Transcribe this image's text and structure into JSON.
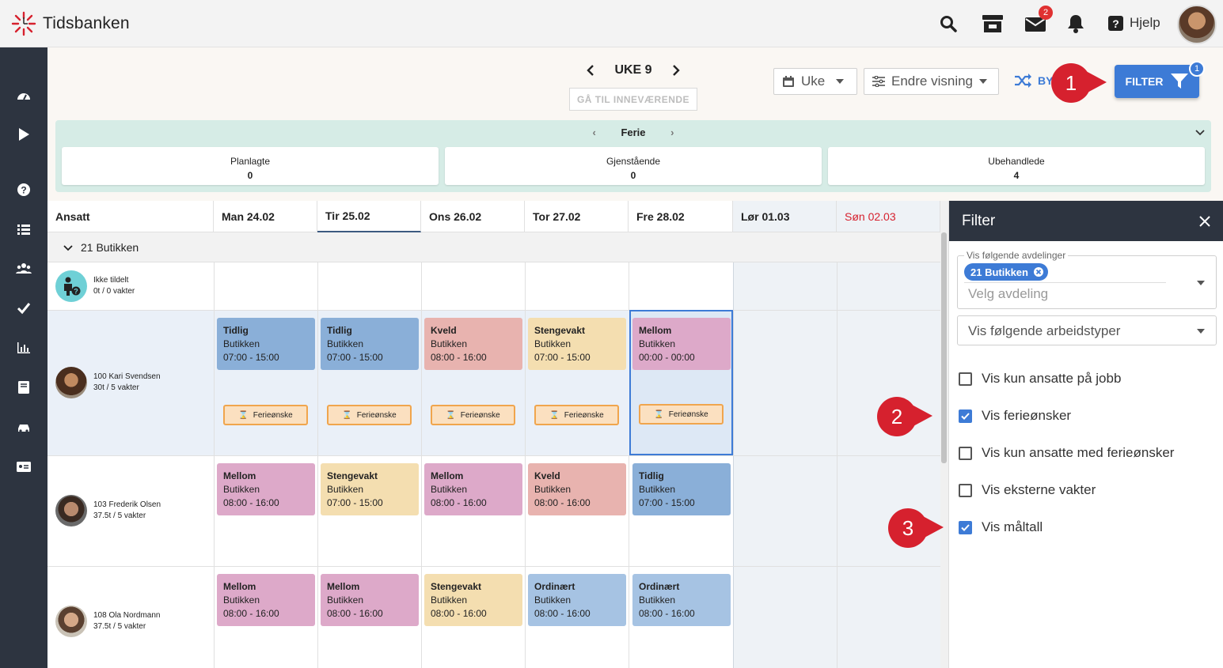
{
  "app": {
    "brand": "Tidsbanken"
  },
  "topbar": {
    "mail_badge": "2",
    "help_label": "Hjelp"
  },
  "toolbar": {
    "week_label": "UKE 9",
    "goto_current": "GÅ TIL INNEVÆRENDE",
    "view_select": "Uke",
    "change_view": "Endre visning",
    "swap_label": "BY",
    "filter_label": "FILTER",
    "filter_badge": "1"
  },
  "ferie": {
    "title": "Ferie",
    "stats": [
      {
        "label": "Planlagte",
        "value": "0"
      },
      {
        "label": "Gjenstående",
        "value": "0"
      },
      {
        "label": "Ubehandlede",
        "value": "4"
      }
    ]
  },
  "schedule": {
    "employee_header": "Ansatt",
    "days": [
      "Man 24.02",
      "Tir 25.02",
      "Ons 26.02",
      "Tor 27.02",
      "Fre 28.02",
      "Lør 01.03",
      "Søn 02.03"
    ],
    "group": "21 Butikken",
    "unassigned": {
      "name": "Ikke tildelt",
      "sub": "0t / 0 vakter"
    },
    "employees": [
      {
        "name": "100 Kari Svendsen",
        "sub": "30t / 5 vakter",
        "shifts": [
          {
            "title": "Tidlig",
            "dept": "Butikken",
            "time": "07:00 - 15:00",
            "color": "blue"
          },
          {
            "title": "Tidlig",
            "dept": "Butikken",
            "time": "07:00 - 15:00",
            "color": "blue"
          },
          {
            "title": "Kveld",
            "dept": "Butikken",
            "time": "08:00 - 16:00",
            "color": "red"
          },
          {
            "title": "Stengevakt",
            "dept": "Butikken",
            "time": "07:00 - 15:00",
            "color": "yellow"
          },
          {
            "title": "Mellom",
            "dept": "Butikken",
            "time": "00:00 - 00:00",
            "color": "pink"
          }
        ],
        "wish_label": "Ferieønske"
      },
      {
        "name": "103 Frederik Olsen",
        "sub": "37.5t / 5 vakter",
        "shifts": [
          {
            "title": "Mellom",
            "dept": "Butikken",
            "time": "08:00 - 16:00",
            "color": "pink"
          },
          {
            "title": "Stengevakt",
            "dept": "Butikken",
            "time": "07:00 - 15:00",
            "color": "yellow"
          },
          {
            "title": "Mellom",
            "dept": "Butikken",
            "time": "08:00 - 16:00",
            "color": "pink"
          },
          {
            "title": "Kveld",
            "dept": "Butikken",
            "time": "08:00 - 16:00",
            "color": "red"
          },
          {
            "title": "Tidlig",
            "dept": "Butikken",
            "time": "07:00 - 15:00",
            "color": "blue"
          }
        ]
      },
      {
        "name": "108 Ola Nordmann",
        "sub": "37.5t / 5 vakter",
        "shifts": [
          {
            "title": "Mellom",
            "dept": "Butikken",
            "time": "08:00 - 16:00",
            "color": "pink"
          },
          {
            "title": "Mellom",
            "dept": "Butikken",
            "time": "08:00 - 16:00",
            "color": "pink"
          },
          {
            "title": "Stengevakt",
            "dept": "Butikken",
            "time": "08:00 - 16:00",
            "color": "yellow"
          },
          {
            "title": "Ordinært",
            "dept": "Butikken",
            "time": "08:00 - 16:00",
            "color": "lblue"
          },
          {
            "title": "Ordinært",
            "dept": "Butikken",
            "time": "08:00 - 16:00",
            "color": "lblue"
          }
        ]
      }
    ]
  },
  "filter_panel": {
    "title": "Filter",
    "departments_legend": "Vis følgende avdelinger",
    "department_chip": "21 Butikken",
    "department_placeholder": "Velg avdeling",
    "worktypes_placeholder": "Vis følgende arbeidstyper",
    "options": [
      {
        "label": "Vis kun ansatte på jobb",
        "checked": false
      },
      {
        "label": "Vis ferieønsker",
        "checked": true
      },
      {
        "label": "Vis kun ansatte med ferieønsker",
        "checked": false
      },
      {
        "label": "Vis eksterne vakter",
        "checked": false
      },
      {
        "label": "Vis måltall",
        "checked": true
      }
    ]
  },
  "callouts": [
    "1",
    "2",
    "3"
  ],
  "colors": {
    "accent": "#3d7bd6",
    "sidebar": "#2d3440",
    "callout": "#d6212e",
    "sunday": "#d6212e"
  }
}
